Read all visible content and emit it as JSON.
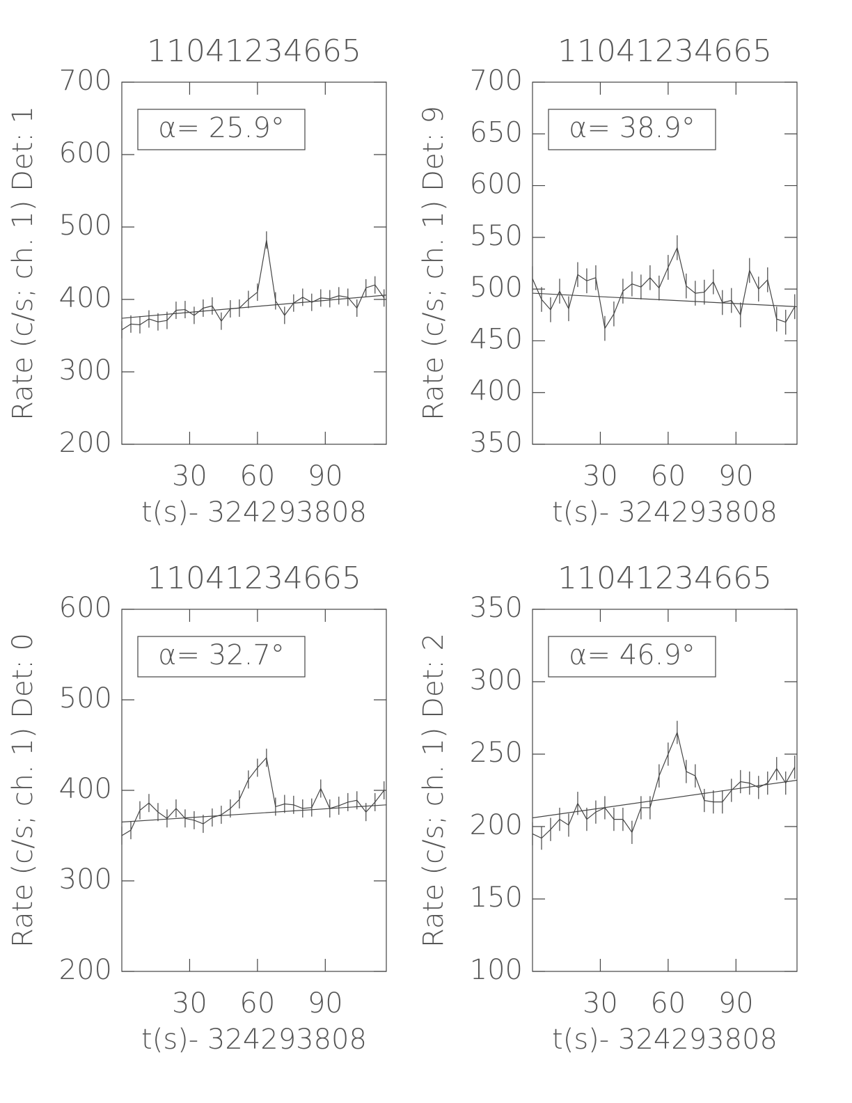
{
  "chart_data": [
    {
      "type": "line",
      "title": "11041234665",
      "y_label": "Rate (c/s; ch. 1) Det: 1",
      "x_label": "t(s)- 324293808",
      "annotation": "α= 25.9°",
      "xlim": [
        0,
        117
      ],
      "xticks": [
        30,
        60,
        90
      ],
      "ylim": [
        200,
        700
      ],
      "yticks": [
        200,
        300,
        400,
        500,
        600,
        700
      ],
      "x": [
        0,
        4,
        8,
        12,
        16,
        20,
        24,
        28,
        32,
        36,
        40,
        44,
        48,
        52,
        56,
        60,
        64,
        68,
        72,
        76,
        80,
        84,
        88,
        92,
        96,
        100,
        104,
        108,
        112,
        116
      ],
      "series": [
        {
          "values": [
            358,
            366,
            365,
            373,
            369,
            371,
            385,
            386,
            378,
            388,
            391,
            370,
            387,
            388,
            400,
            410,
            482,
            398,
            378,
            395,
            403,
            396,
            402,
            401,
            405,
            403,
            388,
            416,
            420,
            402
          ]
        }
      ],
      "error": 12,
      "fit": {
        "x": [
          0,
          117
        ],
        "values": [
          374,
          406
        ]
      }
    },
    {
      "type": "line",
      "title": "11041234665",
      "y_label": "Rate (c/s; ch. 1) Det: 9",
      "x_label": "t(s)- 324293808",
      "annotation": "α= 38.9°",
      "xlim": [
        0,
        117
      ],
      "xticks": [
        30,
        60,
        90
      ],
      "ylim": [
        350,
        700
      ],
      "yticks": [
        350,
        400,
        450,
        500,
        550,
        600,
        650,
        700
      ],
      "x": [
        0,
        4,
        8,
        12,
        16,
        20,
        24,
        28,
        32,
        36,
        40,
        44,
        48,
        52,
        56,
        60,
        64,
        68,
        72,
        76,
        80,
        84,
        88,
        92,
        96,
        100,
        104,
        108,
        112,
        116
      ],
      "series": [
        {
          "values": [
            510,
            490,
            480,
            498,
            481,
            514,
            508,
            511,
            462,
            476,
            498,
            505,
            502,
            511,
            501,
            521,
            540,
            503,
            496,
            497,
            507,
            487,
            489,
            475,
            518,
            500,
            509,
            471,
            468,
            483
          ]
        }
      ],
      "error": 12,
      "fit": {
        "x": [
          0,
          117
        ],
        "values": [
          496,
          483
        ]
      }
    },
    {
      "type": "line",
      "title": "11041234665",
      "y_label": "Rate (c/s; ch. 1) Det: 0",
      "x_label": "t(s)- 324293808",
      "annotation": "α= 32.7°",
      "xlim": [
        0,
        117
      ],
      "xticks": [
        30,
        60,
        90
      ],
      "ylim": [
        200,
        600
      ],
      "yticks": [
        200,
        300,
        400,
        500,
        600
      ],
      "x": [
        0,
        4,
        8,
        12,
        16,
        20,
        24,
        28,
        32,
        36,
        40,
        44,
        48,
        52,
        56,
        60,
        64,
        68,
        72,
        76,
        80,
        84,
        88,
        92,
        96,
        100,
        104,
        108,
        112,
        116
      ],
      "series": [
        {
          "values": [
            350,
            356,
            378,
            386,
            376,
            369,
            380,
            369,
            367,
            363,
            370,
            373,
            380,
            390,
            412,
            425,
            436,
            382,
            385,
            384,
            380,
            381,
            402,
            380,
            383,
            387,
            389,
            376,
            387,
            400
          ]
        }
      ],
      "error": 10,
      "fit": {
        "x": [
          0,
          117
        ],
        "values": [
          365,
          384
        ]
      }
    },
    {
      "type": "line",
      "title": "11041234665",
      "y_label": "Rate (c/s; ch. 1) Det: 2",
      "x_label": "t(s)- 324293808",
      "annotation": "α= 46.9°",
      "xlim": [
        0,
        117
      ],
      "xticks": [
        30,
        60,
        90
      ],
      "ylim": [
        100,
        350
      ],
      "yticks": [
        100,
        150,
        200,
        250,
        300,
        350
      ],
      "x": [
        0,
        4,
        8,
        12,
        16,
        20,
        24,
        28,
        32,
        36,
        40,
        44,
        48,
        52,
        56,
        60,
        64,
        68,
        72,
        76,
        80,
        84,
        88,
        92,
        96,
        100,
        104,
        108,
        112,
        116
      ],
      "series": [
        {
          "values": [
            195,
            192,
            198,
            205,
            201,
            216,
            205,
            210,
            213,
            205,
            205,
            196,
            213,
            213,
            235,
            250,
            265,
            238,
            235,
            218,
            217,
            217,
            225,
            231,
            230,
            227,
            230,
            240,
            230,
            241
          ]
        }
      ],
      "error": 8,
      "fit": {
        "x": [
          0,
          117
        ],
        "values": [
          206,
          232
        ]
      }
    }
  ]
}
